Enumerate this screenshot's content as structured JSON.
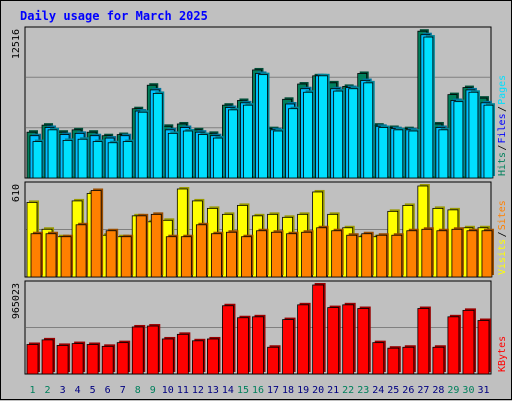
{
  "title": "Daily usage for March 2025",
  "colors": {
    "hits": "#00805c",
    "files": "#00c0ff",
    "pages": "#00e0ff",
    "visits": "#ffff00",
    "sites": "#ff8000",
    "kbytes": "#ff0000",
    "weekday_label": "#000080",
    "weekend_label": "#00805c"
  },
  "chart_data": [
    {
      "type": "bar",
      "panel": "hits-files-pages",
      "y_max_label": "12516",
      "ylim": [
        0,
        12516
      ],
      "legend": [
        {
          "text": "Hits",
          "color": "#00805c"
        },
        {
          "text": "/",
          "color": "#000000"
        },
        {
          "text": "Files",
          "color": "#0000ff"
        },
        {
          "text": "/",
          "color": "#000000"
        },
        {
          "text": "Pages",
          "color": "#00e0ff"
        }
      ],
      "categories": [
        "1",
        "2",
        "3",
        "4",
        "5",
        "6",
        "7",
        "8",
        "9",
        "10",
        "11",
        "12",
        "13",
        "14",
        "15",
        "16",
        "17",
        "18",
        "19",
        "20",
        "21",
        "22",
        "23",
        "24",
        "25",
        "26",
        "27",
        "28",
        "29",
        "30",
        "31"
      ],
      "series": [
        {
          "name": "Hits",
          "values": [
            3900,
            4500,
            3900,
            4100,
            3900,
            3600,
            3700,
            5900,
            7900,
            4400,
            4600,
            4100,
            3800,
            6200,
            6600,
            9200,
            4200,
            6700,
            8000,
            8700,
            8100,
            7800,
            8900,
            4500,
            4300,
            4200,
            12500,
            4600,
            7100,
            7700,
            6800
          ]
        },
        {
          "name": "Files",
          "values": [
            3600,
            4300,
            3700,
            3800,
            3600,
            3400,
            3600,
            5700,
            7500,
            4100,
            4300,
            3900,
            3600,
            6000,
            6400,
            8900,
            4100,
            6300,
            7600,
            8700,
            7600,
            7700,
            8300,
            4400,
            4200,
            4100,
            12200,
            4300,
            6600,
            7500,
            6400
          ]
        },
        {
          "name": "Pages",
          "values": [
            3100,
            4100,
            3200,
            3300,
            3100,
            3000,
            3100,
            5600,
            7200,
            3800,
            4000,
            3700,
            3400,
            5800,
            6200,
            8800,
            4000,
            5900,
            7300,
            8700,
            7400,
            7600,
            8100,
            4300,
            4100,
            4000,
            12000,
            4100,
            6500,
            7300,
            6200
          ]
        }
      ]
    },
    {
      "type": "bar",
      "panel": "visits-sites",
      "y_max_label": "610",
      "ylim": [
        0,
        610
      ],
      "legend": [
        {
          "text": "Visits",
          "color": "#ffff00"
        },
        {
          "text": "/",
          "color": "#000000"
        },
        {
          "text": "Sites",
          "color": "#ff8000"
        }
      ],
      "categories": [
        "1",
        "2",
        "3",
        "4",
        "5",
        "6",
        "7",
        "8",
        "9",
        "10",
        "11",
        "12",
        "13",
        "14",
        "15",
        "16",
        "17",
        "18",
        "19",
        "20",
        "21",
        "22",
        "23",
        "24",
        "25",
        "26",
        "27",
        "28",
        "29",
        "30",
        "31"
      ],
      "series": [
        {
          "name": "Visits",
          "values": [
            500,
            320,
            270,
            510,
            560,
            280,
            270,
            410,
            370,
            380,
            590,
            510,
            460,
            420,
            480,
            410,
            420,
            400,
            420,
            570,
            420,
            330,
            270,
            270,
            440,
            480,
            610,
            460,
            450,
            330,
            330
          ]
        },
        {
          "name": "Sites",
          "values": [
            290,
            290,
            270,
            350,
            580,
            310,
            270,
            410,
            420,
            270,
            270,
            350,
            290,
            300,
            270,
            310,
            300,
            290,
            300,
            330,
            310,
            280,
            290,
            280,
            280,
            310,
            320,
            310,
            320,
            310,
            310
          ]
        }
      ]
    },
    {
      "type": "bar",
      "panel": "kbytes",
      "y_max_label": "965023",
      "ylim": [
        0,
        965023
      ],
      "legend": [
        {
          "text": "KBytes",
          "color": "#ff0000"
        }
      ],
      "categories": [
        "1",
        "2",
        "3",
        "4",
        "5",
        "6",
        "7",
        "8",
        "9",
        "10",
        "11",
        "12",
        "13",
        "14",
        "15",
        "16",
        "17",
        "18",
        "19",
        "20",
        "21",
        "22",
        "23",
        "24",
        "25",
        "26",
        "27",
        "28",
        "29",
        "30",
        "31"
      ],
      "series": [
        {
          "name": "KBytes",
          "values": [
            320000,
            370000,
            310000,
            330000,
            320000,
            300000,
            340000,
            510000,
            520000,
            380000,
            430000,
            360000,
            380000,
            740000,
            610000,
            620000,
            290000,
            590000,
            750000,
            965000,
            720000,
            750000,
            710000,
            340000,
            280000,
            290000,
            710000,
            290000,
            620000,
            690000,
            580000
          ]
        }
      ]
    }
  ]
}
